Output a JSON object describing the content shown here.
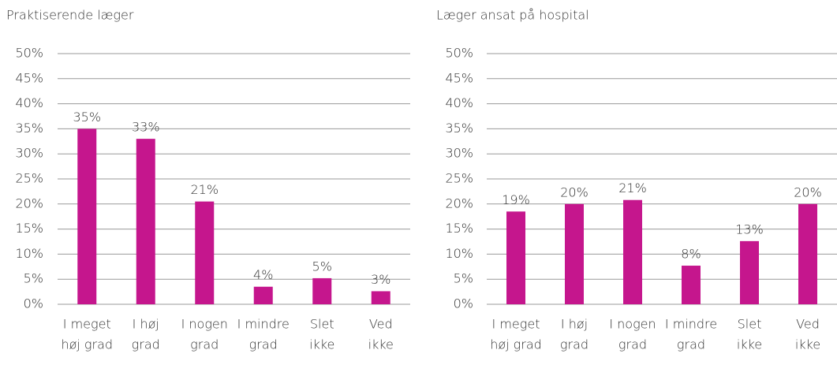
{
  "chart_data": [
    {
      "type": "bar",
      "title": "Praktiserende læger",
      "categories": [
        [
          "I meget",
          "høj grad"
        ],
        [
          "I høj",
          "grad"
        ],
        [
          "I nogen",
          "grad"
        ],
        [
          "I mindre",
          "grad"
        ],
        [
          "Slet",
          "ikke"
        ],
        [
          "Ved",
          "ikke"
        ]
      ],
      "values": [
        35,
        33,
        20.5,
        3.5,
        5.2,
        2.6
      ],
      "value_labels": [
        "35%",
        "33%",
        "21%",
        "4%",
        "5%",
        "3%"
      ],
      "color": "#c5168d",
      "ylim": [
        0,
        50
      ],
      "yticks": [
        {
          "value": 0,
          "label": "0%"
        },
        {
          "value": 5,
          "label": "5%"
        },
        {
          "value": 10,
          "label": "10%"
        },
        {
          "value": 15,
          "label": "15%"
        },
        {
          "value": 20,
          "label": "20%"
        },
        {
          "value": 25,
          "label": "25%"
        },
        {
          "value": 30,
          "label": "30%"
        },
        {
          "value": 35,
          "label": "35%"
        },
        {
          "value": 40,
          "label": "40%"
        },
        {
          "value": 45,
          "label": "45%"
        },
        {
          "value": 50,
          "label": "50%"
        }
      ],
      "grid": true
    },
    {
      "type": "bar",
      "title": "Læger ansat på hospital",
      "categories": [
        [
          "I meget",
          "høj grad"
        ],
        [
          "I høj",
          "grad"
        ],
        [
          "I nogen",
          "grad"
        ],
        [
          "I mindre",
          "grad"
        ],
        [
          "Slet",
          "ikke"
        ],
        [
          "Ved",
          "ikke"
        ]
      ],
      "values": [
        18.5,
        20,
        20.8,
        7.7,
        12.6,
        20
      ],
      "value_labels": [
        "19%",
        "20%",
        "21%",
        "8%",
        "13%",
        "20%"
      ],
      "color": "#c5168d",
      "ylim": [
        0,
        50
      ],
      "yticks": [
        {
          "value": 0,
          "label": "0%"
        },
        {
          "value": 5,
          "label": "5%"
        },
        {
          "value": 10,
          "label": "10%"
        },
        {
          "value": 15,
          "label": "15%"
        },
        {
          "value": 20,
          "label": "20%"
        },
        {
          "value": 25,
          "label": "25%"
        },
        {
          "value": 30,
          "label": "30%"
        },
        {
          "value": 35,
          "label": "35%"
        },
        {
          "value": 40,
          "label": "40%"
        },
        {
          "value": 45,
          "label": "45%"
        },
        {
          "value": 50,
          "label": "50%"
        }
      ],
      "grid": true
    }
  ]
}
